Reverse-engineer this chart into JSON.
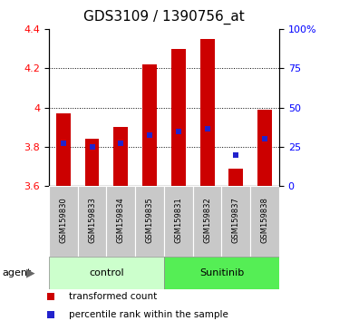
{
  "title": "GDS3109 / 1390756_at",
  "samples": [
    "GSM159830",
    "GSM159833",
    "GSM159834",
    "GSM159835",
    "GSM159831",
    "GSM159832",
    "GSM159837",
    "GSM159838"
  ],
  "groups": [
    "control",
    "control",
    "control",
    "control",
    "Sunitinib",
    "Sunitinib",
    "Sunitinib",
    "Sunitinib"
  ],
  "bar_tops": [
    3.97,
    3.84,
    3.9,
    4.22,
    4.3,
    4.35,
    3.69,
    3.99
  ],
  "bar_base": 3.6,
  "blue_values": [
    3.82,
    3.8,
    3.82,
    3.86,
    3.88,
    3.89,
    3.76,
    3.84
  ],
  "ylim": [
    3.6,
    4.4
  ],
  "yticks_left": [
    3.6,
    3.8,
    4.0,
    4.2,
    4.4
  ],
  "yticks_right": [
    0,
    25,
    50,
    75,
    100
  ],
  "ytick_right_labels": [
    "0",
    "25",
    "50",
    "75",
    "100%"
  ],
  "bar_color": "#cc0000",
  "blue_color": "#2222cc",
  "control_color": "#ccffcc",
  "sunitinib_color": "#55ee55",
  "group_label_control": "control",
  "group_label_sunitinib": "Sunitinib",
  "legend_red_label": "transformed count",
  "legend_blue_label": "percentile rank within the sample",
  "agent_label": "agent",
  "title_fontsize": 11,
  "tick_fontsize": 8,
  "bar_width": 0.5,
  "grid_color": "#000000"
}
